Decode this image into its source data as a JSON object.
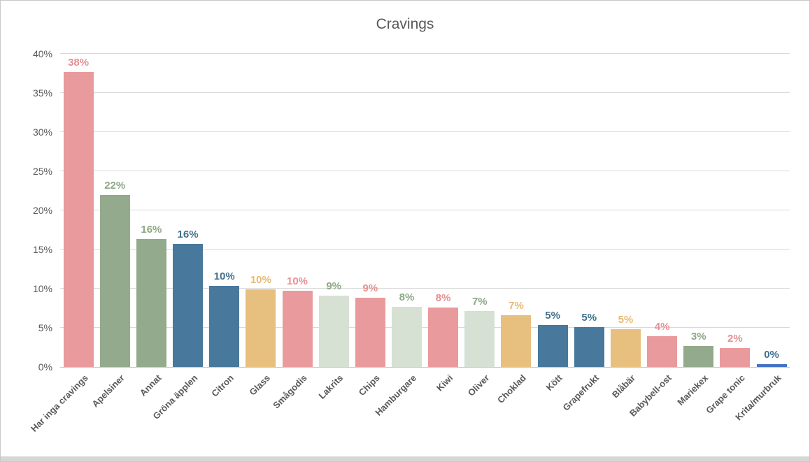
{
  "chart_data": {
    "type": "bar",
    "title": "Cravings",
    "xlabel": "",
    "ylabel": "",
    "ylim": [
      0,
      40
    ],
    "y_tick_step": 5,
    "y_ticks": [
      "0%",
      "5%",
      "10%",
      "15%",
      "20%",
      "25%",
      "30%",
      "35%",
      "40%"
    ],
    "grid": true,
    "legend": false,
    "categories": [
      "Har inga cravings",
      "Apelsiner",
      "Annat",
      "Gröna äpplen",
      "Citron",
      "Glass",
      "Smågodis",
      "Lakrits",
      "Chips",
      "Hamburgare",
      "Kiwi",
      "Oliver",
      "Choklad",
      "Kött",
      "Grapefrukt",
      "Blåbär",
      "Babybell-ost",
      "Mariekex",
      "Grape tonic",
      "Krita/murbruk"
    ],
    "values": [
      38,
      22,
      16,
      16,
      10,
      10,
      10,
      9,
      9,
      8,
      8,
      7,
      7,
      5,
      5,
      5,
      4,
      3,
      2,
      0
    ],
    "value_labels": [
      "38%",
      "22%",
      "16%",
      "16%",
      "10%",
      "10%",
      "10%",
      "9%",
      "9%",
      "8%",
      "8%",
      "7%",
      "7%",
      "5%",
      "5%",
      "5%",
      "4%",
      "3%",
      "2%",
      "0%"
    ],
    "bar_heights_precise_pct": [
      37.7,
      22.0,
      16.3,
      15.7,
      10.4,
      9.9,
      9.7,
      9.1,
      8.8,
      7.7,
      7.6,
      7.1,
      6.6,
      5.4,
      5.1,
      4.8,
      3.9,
      2.7,
      2.4,
      0.4
    ],
    "bar_color_keys": [
      "pink",
      "sage",
      "sage",
      "steel",
      "steel",
      "amber",
      "pink",
      "pale",
      "pink",
      "pale",
      "pink",
      "pale",
      "amber",
      "steel",
      "steel",
      "amber",
      "pink",
      "sage",
      "pink",
      "royal"
    ],
    "palette": {
      "pink": "#e99a9c",
      "sage": "#93aa8c",
      "steel": "#48799c",
      "amber": "#e7bf7e",
      "pale": "#d6e0d3",
      "royal": "#4472c4"
    },
    "label_palette": {
      "pink": "#e69093",
      "sage": "#8da786",
      "steel": "#40708f",
      "amber": "#e8ba72",
      "pale": "#8da786",
      "royal": "#40708f"
    },
    "colors": {
      "text": "#595959",
      "gridline": "#d9d9d9",
      "axis_line": "#c6c6c6"
    }
  },
  "window": {
    "background": "#ffffff",
    "border_color": "#c9c9c9",
    "bottom_strip_color": "#d6d6d6"
  }
}
